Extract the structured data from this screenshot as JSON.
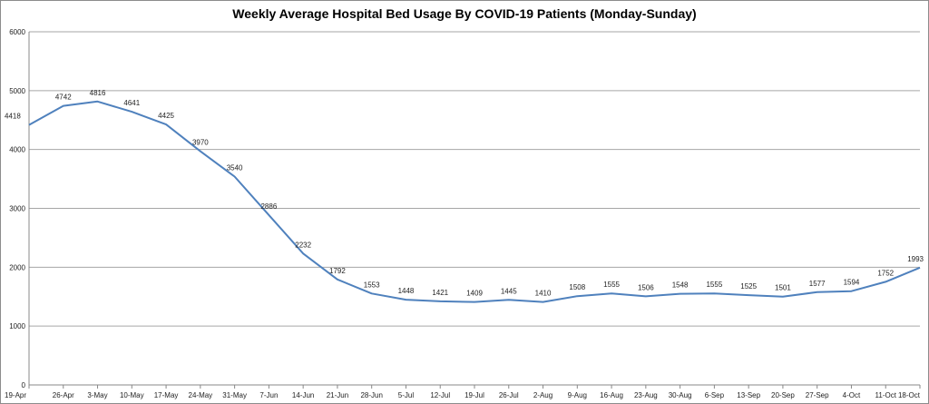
{
  "chart_data": {
    "type": "line",
    "title": "Weekly Average Hospital Bed Usage By COVID-19 Patients (Monday-Sunday)",
    "xlabel": "",
    "ylabel": "",
    "ylim": [
      0,
      6000
    ],
    "yticks": [
      0,
      1000,
      2000,
      3000,
      4000,
      5000,
      6000
    ],
    "grid": true,
    "legend": "none",
    "colors": {
      "line": "#4f81bd",
      "grid": "#a6a6a6",
      "axis": "#888888"
    },
    "categories": [
      "19-Apr",
      "26-Apr",
      "3-May",
      "10-May",
      "17-May",
      "24-May",
      "31-May",
      "7-Jun",
      "14-Jun",
      "21-Jun",
      "28-Jun",
      "5-Jul",
      "12-Jul",
      "19-Jul",
      "26-Jul",
      "2-Aug",
      "9-Aug",
      "16-Aug",
      "23-Aug",
      "30-Aug",
      "6-Sep",
      "13-Sep",
      "20-Sep",
      "27-Sep",
      "4-Oct",
      "11-Oct",
      "18-Oct"
    ],
    "series": [
      {
        "values": [
          4418,
          4742,
          4816,
          4641,
          4425,
          3970,
          3540,
          2886,
          2232,
          1792,
          1553,
          1448,
          1421,
          1409,
          1445,
          1410,
          1508,
          1555,
          1506,
          1548,
          1555,
          1525,
          1501,
          1577,
          1594,
          1752,
          1993
        ]
      }
    ]
  }
}
